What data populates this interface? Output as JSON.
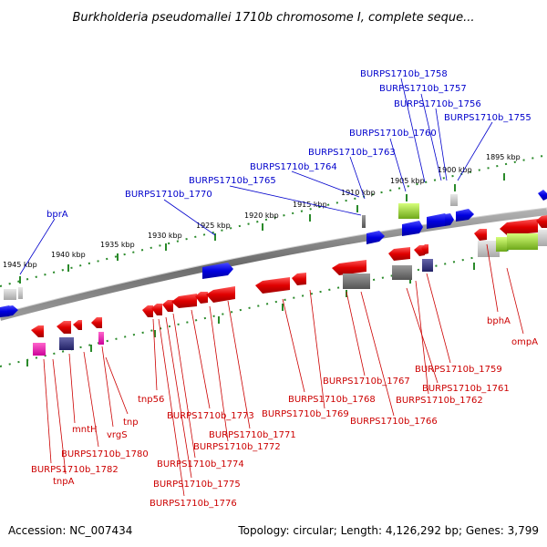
{
  "title": "Burkholderia pseudomallei 1710b chromosome I, complete seque...",
  "footer": {
    "accession": "Accession: NC_007434",
    "stats": "Topology: circular; Length: 4,126,292 bp; Genes: 3,799"
  },
  "colors": {
    "backbone": "#7a7a7a",
    "dots": "#2a8a2a",
    "up_label": "#0000cc",
    "down_label": "#cc0000"
  },
  "kbp_labels": [
    "1945 kbp",
    "1940 kbp",
    "1935 kbp",
    "1930 kbp",
    "1925 kbp",
    "1920 kbp",
    "1915 kbp",
    "1910 kbp",
    "1905 kbp",
    "1900 kbp",
    "1895 kbp"
  ],
  "labels_up": [
    "BURPS1710b_1758",
    "BURPS1710b_1757",
    "BURPS1710b_1756",
    "BURPS1710b_1755",
    "BURPS1710b_1760",
    "BURPS1710b_1763",
    "BURPS1710b_1764",
    "BURPS1710b_1765",
    "BURPS1710b_1770",
    "bprA"
  ],
  "labels_down": [
    "bphA",
    "ompA",
    "BURPS1710b_1759",
    "BURPS1710b_1761",
    "BURPS1710b_1767",
    "BURPS1710b_1762",
    "BURPS1710b_1768",
    "BURPS1710b_1769",
    "BURPS1710b_1766",
    "tnp56",
    "BURPS1710b_1773",
    "BURPS1710b_1771",
    "BURPS1710b_1772",
    "BURPS1710b_1774",
    "BURPS1710b_1775",
    "BURPS1710b_1776",
    "tnp",
    "vrgS",
    "mntH",
    "BURPS1710b_1780",
    "BURPS1710b_1782",
    "tnpA"
  ]
}
